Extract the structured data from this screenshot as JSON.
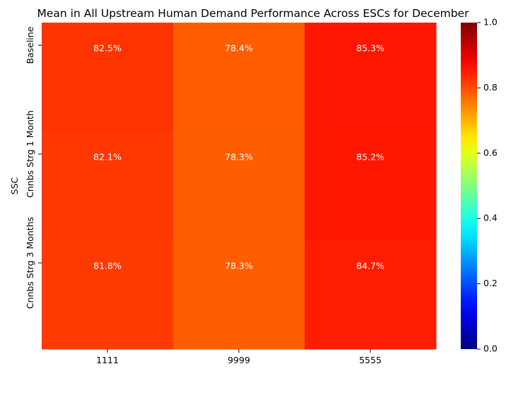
{
  "chart_data": {
    "type": "heatmap",
    "title": "Mean in All Upstream Human Demand Performance Across ESCs for December",
    "xlabel": "",
    "ylabel": "SSC",
    "x_categories": [
      "1111",
      "9999",
      "5555"
    ],
    "y_categories": [
      "Baseline",
      "Cnnbs Strg 1 Month",
      "Cnnbs Strg 3 Months"
    ],
    "values": [
      [
        0.825,
        0.784,
        0.853
      ],
      [
        0.821,
        0.783,
        0.852
      ],
      [
        0.818,
        0.783,
        0.847
      ]
    ],
    "annotations": [
      [
        "82.5%",
        "78.4%",
        "85.3%"
      ],
      [
        "82.1%",
        "78.3%",
        "85.2%"
      ],
      [
        "81.8%",
        "78.3%",
        "84.7%"
      ]
    ],
    "colormap": "jet",
    "vmin": 0.0,
    "vmax": 1.0,
    "colorbar": {
      "ticks": [
        0.0,
        0.2,
        0.4,
        0.6,
        0.8,
        1.0
      ],
      "tick_labels": [
        "0.0",
        "0.2",
        "0.4",
        "0.6",
        "0.8",
        "1.0"
      ]
    },
    "grid": false
  }
}
